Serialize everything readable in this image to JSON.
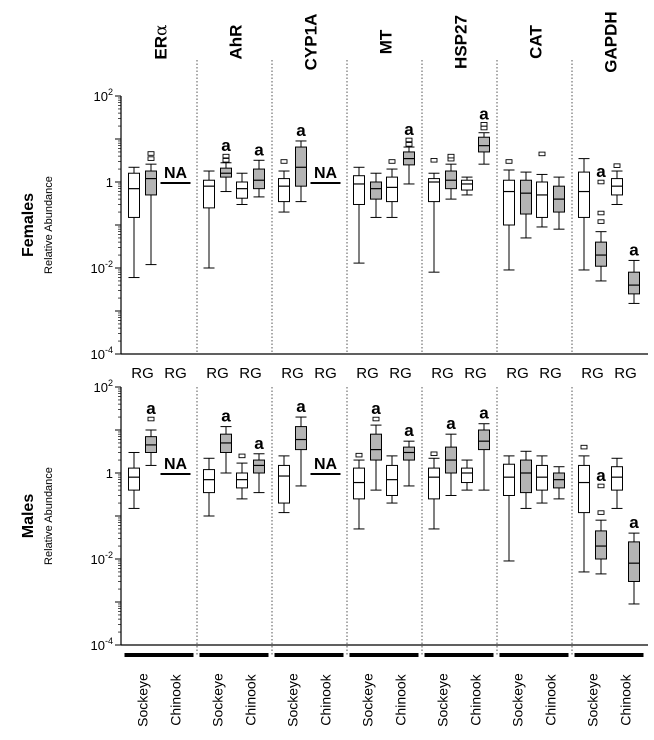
{
  "chart_data": {
    "type": "boxplot",
    "genes": [
      "ERα",
      "AhR",
      "CYP1A",
      "MT",
      "HSP27",
      "CAT",
      "GAPDH"
    ],
    "gene_label_main": [
      "ER",
      "AhR",
      "CYP1A",
      "MT",
      "HSP27",
      "CAT",
      "GAPDH"
    ],
    "gene_label_greek": [
      "α",
      "",
      "",
      "",
      "",
      "",
      ""
    ],
    "species": [
      "Sockeye",
      "Chinook"
    ],
    "treatments": [
      "R",
      "G"
    ],
    "rg_labels": [
      "RG",
      "RG",
      "RG",
      "RG",
      "RG",
      "RG",
      "RG",
      "RG",
      "RG",
      "RG",
      "RG",
      "RG",
      "RG",
      "RG"
    ],
    "yscale": "log",
    "ylim": [
      0.0001,
      100
    ],
    "yticks": [
      {
        "value": 100,
        "base": "10",
        "exp": "2"
      },
      {
        "value": 1,
        "base": "1",
        "exp": ""
      },
      {
        "value": 0.01,
        "base": "10",
        "exp": "-2"
      },
      {
        "value": 0.0001,
        "base": "10",
        "exp": "-4"
      }
    ],
    "ylabel": "Relative Abundance",
    "na_label": "NA",
    "sig_label": "a",
    "colors": {
      "R": "#ffffff",
      "G": "#b4b4b4"
    },
    "panels": [
      {
        "sex": "Females",
        "groups": [
          {
            "gene": "ERα",
            "species": "Sockeye",
            "treatment": "R",
            "min": 0.006,
            "q1": 0.15,
            "median": 0.7,
            "q3": 1.6,
            "max": 2.2,
            "outliers": [],
            "sig": false
          },
          {
            "gene": "ERα",
            "species": "Sockeye",
            "treatment": "G",
            "min": 0.012,
            "q1": 0.5,
            "median": 1.2,
            "q3": 1.8,
            "max": 2.6,
            "outliers": [
              3.5,
              4.6
            ],
            "sig": false
          },
          {
            "gene": "ERα",
            "species": "Chinook",
            "na": true
          },
          {
            "gene": "AhR",
            "species": "Sockeye",
            "treatment": "R",
            "min": 0.01,
            "q1": 0.25,
            "median": 0.8,
            "q3": 1.1,
            "max": 1.8,
            "outliers": [],
            "sig": false
          },
          {
            "gene": "AhR",
            "species": "Sockeye",
            "treatment": "G",
            "min": 0.6,
            "q1": 1.3,
            "median": 1.6,
            "q3": 2.1,
            "max": 2.8,
            "outliers": [
              3.2,
              4.0
            ],
            "sig": true
          },
          {
            "gene": "AhR",
            "species": "Chinook",
            "treatment": "R",
            "min": 0.3,
            "q1": 0.42,
            "median": 0.7,
            "q3": 1.0,
            "max": 1.6,
            "outliers": [],
            "sig": false
          },
          {
            "gene": "AhR",
            "species": "Chinook",
            "treatment": "G",
            "min": 0.45,
            "q1": 0.7,
            "median": 1.1,
            "q3": 2.0,
            "max": 3.2,
            "outliers": [],
            "sig": true
          },
          {
            "gene": "CYP1A",
            "species": "Sockeye",
            "treatment": "R",
            "min": 0.2,
            "q1": 0.35,
            "median": 0.8,
            "q3": 1.2,
            "max": 1.8,
            "outliers": [
              3.0
            ],
            "sig": false
          },
          {
            "gene": "CYP1A",
            "species": "Sockeye",
            "treatment": "G",
            "min": 0.35,
            "q1": 0.8,
            "median": 2.2,
            "q3": 6.5,
            "max": 9.0,
            "outliers": [],
            "sig": true
          },
          {
            "gene": "CYP1A",
            "species": "Chinook",
            "na": true
          },
          {
            "gene": "MT",
            "species": "Sockeye",
            "treatment": "R",
            "min": 0.013,
            "q1": 0.3,
            "median": 0.9,
            "q3": 1.4,
            "max": 2.2,
            "outliers": [],
            "sig": false
          },
          {
            "gene": "MT",
            "species": "Sockeye",
            "treatment": "G",
            "min": 0.15,
            "q1": 0.4,
            "median": 0.7,
            "q3": 1.0,
            "max": 1.6,
            "outliers": [],
            "sig": false
          },
          {
            "gene": "MT",
            "species": "Chinook",
            "treatment": "R",
            "min": 0.15,
            "q1": 0.35,
            "median": 0.75,
            "q3": 1.3,
            "max": 2.0,
            "outliers": [
              3.0
            ],
            "sig": false
          },
          {
            "gene": "MT",
            "species": "Chinook",
            "treatment": "G",
            "min": 0.9,
            "q1": 2.5,
            "median": 3.5,
            "q3": 5.0,
            "max": 6.5,
            "outliers": [
              7.5,
              9.5
            ],
            "sig": true
          },
          {
            "gene": "HSP27",
            "species": "Sockeye",
            "treatment": "R",
            "min": 0.008,
            "q1": 0.35,
            "median": 1.0,
            "q3": 1.2,
            "max": 1.6,
            "outliers": [
              3.2
            ],
            "sig": false
          },
          {
            "gene": "HSP27",
            "species": "Sockeye",
            "treatment": "G",
            "min": 0.4,
            "q1": 0.7,
            "median": 1.1,
            "q3": 1.8,
            "max": 2.6,
            "outliers": [
              3.4,
              4.0
            ],
            "sig": false
          },
          {
            "gene": "HSP27",
            "species": "Chinook",
            "treatment": "R",
            "min": 0.5,
            "q1": 0.65,
            "median": 0.9,
            "q3": 1.1,
            "max": 1.3,
            "outliers": [],
            "sig": false
          },
          {
            "gene": "HSP27",
            "species": "Chinook",
            "treatment": "G",
            "min": 2.6,
            "q1": 5.0,
            "median": 7.0,
            "q3": 11.0,
            "max": 14.0,
            "outliers": [
              18,
              22
            ],
            "sig": true
          },
          {
            "gene": "CAT",
            "species": "Sockeye",
            "treatment": "R",
            "min": 0.009,
            "q1": 0.1,
            "median": 0.6,
            "q3": 1.1,
            "max": 1.9,
            "outliers": [
              3.0
            ],
            "sig": false
          },
          {
            "gene": "CAT",
            "species": "Sockeye",
            "treatment": "G",
            "min": 0.05,
            "q1": 0.18,
            "median": 0.55,
            "q3": 1.1,
            "max": 1.7,
            "outliers": [],
            "sig": false
          },
          {
            "gene": "CAT",
            "species": "Chinook",
            "treatment": "R",
            "min": 0.09,
            "q1": 0.15,
            "median": 0.5,
            "q3": 1.0,
            "max": 1.5,
            "outliers": [
              4.5
            ],
            "sig": false
          },
          {
            "gene": "CAT",
            "species": "Chinook",
            "treatment": "G",
            "min": 0.08,
            "q1": 0.2,
            "median": 0.4,
            "q3": 0.8,
            "max": 1.3,
            "outliers": [],
            "sig": false
          },
          {
            "gene": "GAPDH",
            "species": "Sockeye",
            "treatment": "R",
            "min": 0.009,
            "q1": 0.15,
            "median": 0.6,
            "q3": 1.7,
            "max": 3.5,
            "outliers": [],
            "sig": false
          },
          {
            "gene": "GAPDH",
            "species": "Sockeye",
            "treatment": "G",
            "min": 0.005,
            "q1": 0.011,
            "median": 0.02,
            "q3": 0.04,
            "max": 0.07,
            "outliers": [
              0.12,
              0.19,
              1.0
            ],
            "sig": true
          },
          {
            "gene": "GAPDH",
            "species": "Chinook",
            "treatment": "R",
            "min": 0.3,
            "q1": 0.5,
            "median": 0.8,
            "q3": 1.2,
            "max": 1.8,
            "outliers": [
              2.4
            ],
            "sig": false
          },
          {
            "gene": "GAPDH",
            "species": "Chinook",
            "treatment": "G",
            "min": 0.0015,
            "q1": 0.0025,
            "median": 0.004,
            "q3": 0.008,
            "max": 0.015,
            "outliers": [],
            "sig": true
          }
        ]
      },
      {
        "sex": "Males",
        "groups": [
          {
            "gene": "ERα",
            "species": "Sockeye",
            "treatment": "R",
            "min": 0.15,
            "q1": 0.4,
            "median": 0.8,
            "q3": 1.3,
            "max": 3.0,
            "outliers": [],
            "sig": false
          },
          {
            "gene": "ERα",
            "species": "Sockeye",
            "treatment": "G",
            "min": 1.5,
            "q1": 3.0,
            "median": 4.5,
            "q3": 7.0,
            "max": 10.0,
            "outliers": [
              18
            ],
            "sig": true
          },
          {
            "gene": "ERα",
            "species": "Chinook",
            "na": true
          },
          {
            "gene": "AhR",
            "species": "Sockeye",
            "treatment": "R",
            "min": 0.1,
            "q1": 0.35,
            "median": 0.7,
            "q3": 1.2,
            "max": 2.2,
            "outliers": [],
            "sig": false
          },
          {
            "gene": "AhR",
            "species": "Sockeye",
            "treatment": "G",
            "min": 1.0,
            "q1": 3.0,
            "median": 5.0,
            "q3": 8.0,
            "max": 12.0,
            "outliers": [],
            "sig": true
          },
          {
            "gene": "AhR",
            "species": "Chinook",
            "treatment": "R",
            "min": 0.25,
            "q1": 0.45,
            "median": 0.7,
            "q3": 1.0,
            "max": 1.7,
            "outliers": [
              2.5
            ],
            "sig": false
          },
          {
            "gene": "AhR",
            "species": "Chinook",
            "treatment": "G",
            "min": 0.35,
            "q1": 1.0,
            "median": 1.5,
            "q3": 2.0,
            "max": 2.8,
            "outliers": [],
            "sig": true
          },
          {
            "gene": "CYP1A",
            "species": "Sockeye",
            "treatment": "R",
            "min": 0.12,
            "q1": 0.2,
            "median": 0.85,
            "q3": 1.5,
            "max": 2.5,
            "outliers": [],
            "sig": false
          },
          {
            "gene": "CYP1A",
            "species": "Sockeye",
            "treatment": "G",
            "min": 0.5,
            "q1": 3.5,
            "median": 6.0,
            "q3": 12.0,
            "max": 20.0,
            "outliers": [],
            "sig": true
          },
          {
            "gene": "CYP1A",
            "species": "Chinook",
            "na": true
          },
          {
            "gene": "MT",
            "species": "Sockeye",
            "treatment": "R",
            "min": 0.05,
            "q1": 0.25,
            "median": 0.6,
            "q3": 1.3,
            "max": 2.0,
            "outliers": [
              2.6
            ],
            "sig": false
          },
          {
            "gene": "MT",
            "species": "Sockeye",
            "treatment": "G",
            "min": 0.4,
            "q1": 2.0,
            "median": 3.5,
            "q3": 8.0,
            "max": 13.0,
            "outliers": [
              18
            ],
            "sig": true
          },
          {
            "gene": "MT",
            "species": "Chinook",
            "treatment": "R",
            "min": 0.2,
            "q1": 0.3,
            "median": 0.7,
            "q3": 1.5,
            "max": 2.5,
            "outliers": [],
            "sig": false
          },
          {
            "gene": "MT",
            "species": "Chinook",
            "treatment": "G",
            "min": 0.5,
            "q1": 2.0,
            "median": 3.0,
            "q3": 4.0,
            "max": 5.5,
            "outliers": [],
            "sig": true
          },
          {
            "gene": "HSP27",
            "species": "Sockeye",
            "treatment": "R",
            "min": 0.05,
            "q1": 0.25,
            "median": 0.8,
            "q3": 1.3,
            "max": 2.2,
            "outliers": [
              2.8
            ],
            "sig": false
          },
          {
            "gene": "HSP27",
            "species": "Sockeye",
            "treatment": "G",
            "min": 0.3,
            "q1": 1.0,
            "median": 2.0,
            "q3": 4.0,
            "max": 8.0,
            "outliers": [],
            "sig": true
          },
          {
            "gene": "HSP27",
            "species": "Chinook",
            "treatment": "R",
            "min": 0.4,
            "q1": 0.6,
            "median": 1.0,
            "q3": 1.3,
            "max": 2.0,
            "outliers": [],
            "sig": false
          },
          {
            "gene": "HSP27",
            "species": "Chinook",
            "treatment": "G",
            "min": 0.4,
            "q1": 3.5,
            "median": 5.5,
            "q3": 10.0,
            "max": 14.0,
            "outliers": [],
            "sig": true
          },
          {
            "gene": "CAT",
            "species": "Sockeye",
            "treatment": "R",
            "min": 0.009,
            "q1": 0.3,
            "median": 0.8,
            "q3": 1.6,
            "max": 2.5,
            "outliers": [],
            "sig": false
          },
          {
            "gene": "CAT",
            "species": "Sockeye",
            "treatment": "G",
            "min": 0.15,
            "q1": 0.35,
            "median": 1.0,
            "q3": 2.0,
            "max": 3.2,
            "outliers": [],
            "sig": false
          },
          {
            "gene": "CAT",
            "species": "Chinook",
            "treatment": "R",
            "min": 0.2,
            "q1": 0.4,
            "median": 0.8,
            "q3": 1.5,
            "max": 2.5,
            "outliers": [],
            "sig": false
          },
          {
            "gene": "CAT",
            "species": "Chinook",
            "treatment": "G",
            "min": 0.25,
            "q1": 0.45,
            "median": 0.7,
            "q3": 1.0,
            "max": 1.4,
            "outliers": [],
            "sig": false
          },
          {
            "gene": "GAPDH",
            "species": "Sockeye",
            "treatment": "R",
            "min": 0.005,
            "q1": 0.12,
            "median": 0.6,
            "q3": 1.5,
            "max": 2.5,
            "outliers": [
              4.0
            ],
            "sig": false
          },
          {
            "gene": "GAPDH",
            "species": "Sockeye",
            "treatment": "G",
            "min": 0.0045,
            "q1": 0.01,
            "median": 0.02,
            "q3": 0.045,
            "max": 0.08,
            "outliers": [
              0.12,
              0.5
            ],
            "sig": true
          },
          {
            "gene": "GAPDH",
            "species": "Chinook",
            "treatment": "R",
            "min": 0.15,
            "q1": 0.4,
            "median": 0.8,
            "q3": 1.4,
            "max": 2.2,
            "outliers": [],
            "sig": false
          },
          {
            "gene": "GAPDH",
            "species": "Chinook",
            "treatment": "G",
            "min": 0.0009,
            "q1": 0.003,
            "median": 0.008,
            "q3": 0.025,
            "max": 0.04,
            "outliers": [],
            "sig": true
          }
        ]
      }
    ]
  }
}
